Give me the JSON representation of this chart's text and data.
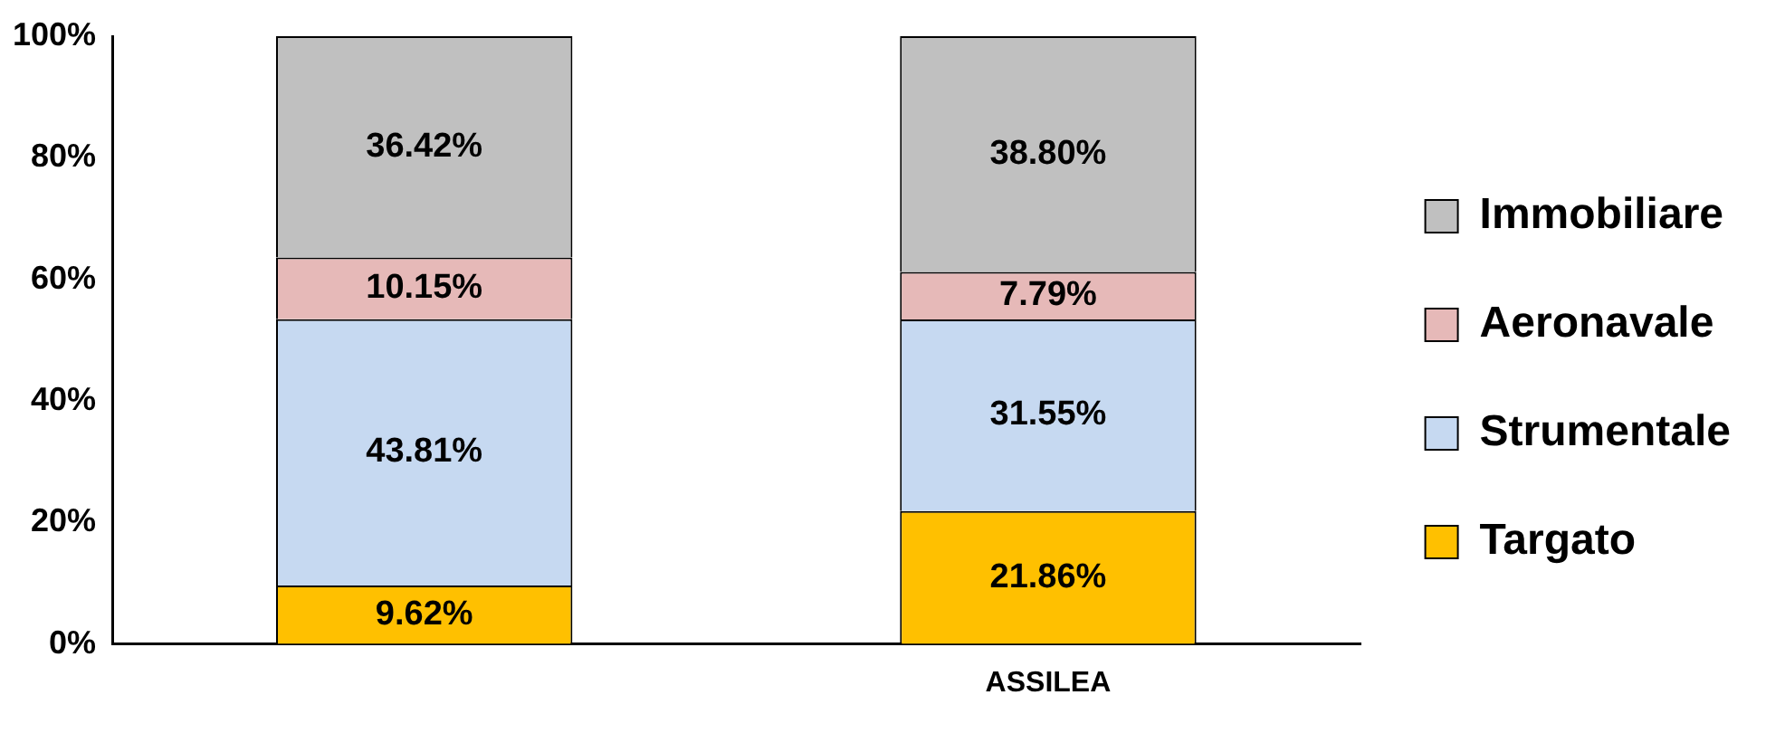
{
  "chart_data": {
    "type": "bar",
    "stacked": true,
    "categories": [
      null,
      "ASSILEA"
    ],
    "series": [
      {
        "name": "Targato",
        "color": "#ffc000",
        "values": [
          9.62,
          21.86
        ],
        "value_labels": [
          "9.62%",
          "21.86%"
        ]
      },
      {
        "name": "Strumentale",
        "color": "#c6d9f1",
        "values": [
          43.81,
          31.55
        ],
        "value_labels": [
          "43.81%",
          "31.55%"
        ]
      },
      {
        "name": "Aeronavale",
        "color": "#e6b9b8",
        "values": [
          10.15,
          7.79
        ],
        "value_labels": [
          "10.15%",
          "7.79%"
        ]
      },
      {
        "name": "Immobiliare",
        "color": "#c0c0c0",
        "values": [
          36.42,
          38.8
        ],
        "value_labels": [
          "36.42%",
          "38.80%"
        ]
      }
    ],
    "ylim": [
      0,
      100
    ],
    "yticks": [
      {
        "value": 0,
        "label": "0%"
      },
      {
        "value": 20,
        "label": "20%"
      },
      {
        "value": 40,
        "label": "40%"
      },
      {
        "value": 60,
        "label": "60%"
      },
      {
        "value": 80,
        "label": "80%"
      },
      {
        "value": 100,
        "label": "100%"
      }
    ],
    "grid": false,
    "legend": "right"
  }
}
